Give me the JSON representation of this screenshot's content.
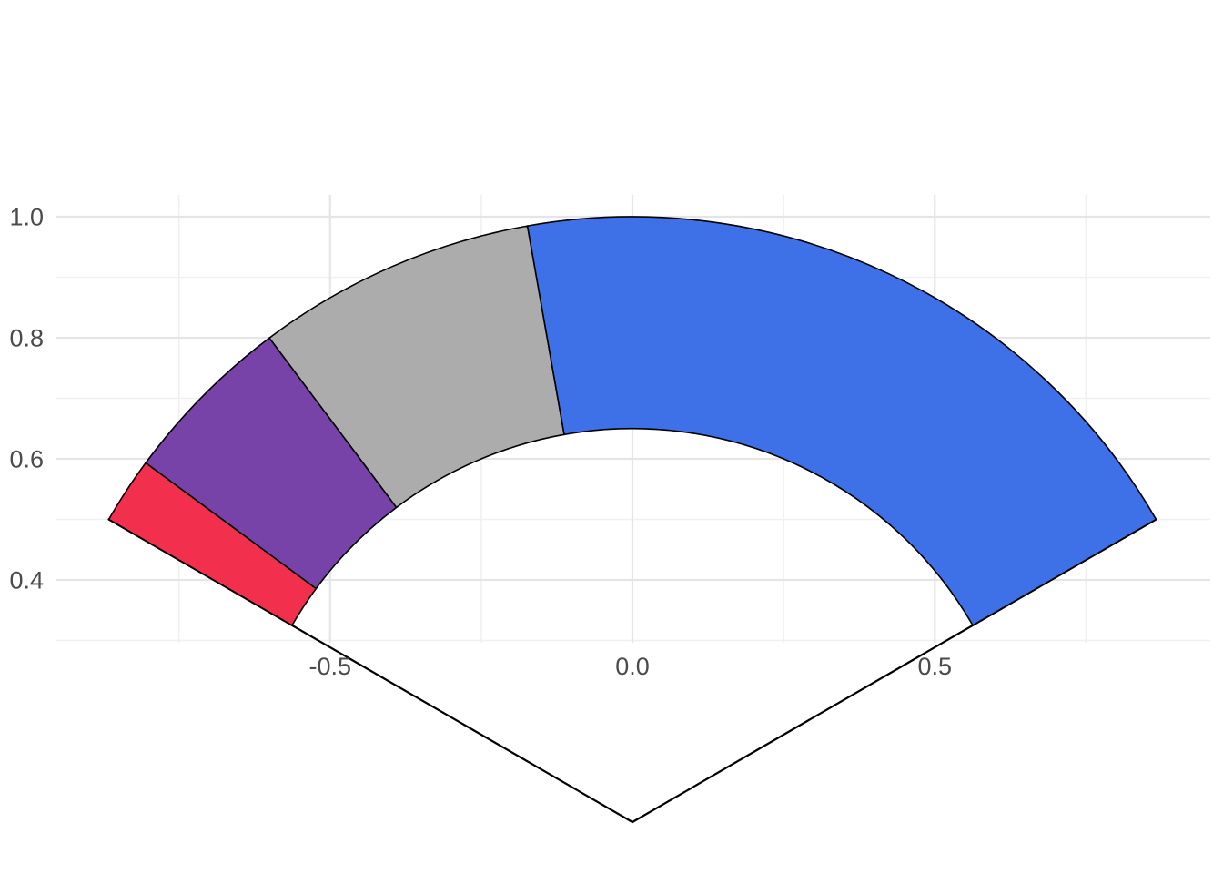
{
  "chart_data": {
    "type": "pie",
    "subtype": "gauge-fan-annular-sectors-on-cartesian-axes",
    "legend": "none",
    "grid_on": true,
    "segments": [
      {
        "name": "red",
        "color": "#F2304E",
        "start_angle_deg": 150.0,
        "end_angle_deg": 143.6,
        "fraction": 0.053
      },
      {
        "name": "purple",
        "color": "#7843A8",
        "start_angle_deg": 143.6,
        "end_angle_deg": 126.9,
        "fraction": 0.139
      },
      {
        "name": "gray",
        "color": "#ACACAC",
        "start_angle_deg": 126.9,
        "end_angle_deg": 100.0,
        "fraction": 0.224
      },
      {
        "name": "blue",
        "color": "#3E71E8",
        "start_angle_deg": 100.0,
        "end_angle_deg": 30.0,
        "fraction": 0.583
      }
    ],
    "geometry": {
      "center": {
        "x": 0,
        "y": 0
      },
      "inner_radius": 0.65,
      "outer_radius": 1.0,
      "arc_start_deg": 150,
      "arc_end_deg": 30,
      "radial_edge_lines_deg": [
        150,
        30
      ]
    },
    "axes": {
      "x": {
        "ticks": [
          {
            "value": -0.5,
            "label": "-0.5"
          },
          {
            "value": 0.0,
            "label": "0.0"
          },
          {
            "value": 0.5,
            "label": "0.5"
          }
        ],
        "minor_gridlines": [
          -0.75,
          -0.25,
          0.25,
          0.75
        ],
        "range": [
          -0.953,
          0.956
        ]
      },
      "y": {
        "ticks": [
          {
            "value": 1.0,
            "label": "1.0"
          },
          {
            "value": 0.8,
            "label": "0.8"
          },
          {
            "value": 0.6,
            "label": "0.6"
          },
          {
            "value": 0.4,
            "label": "0.4"
          }
        ],
        "minor_gridlines": [
          0.3,
          0.5,
          0.7,
          0.9
        ],
        "range": [
          0.296,
          1.037
        ]
      }
    },
    "style": {
      "background": "#FFFFFF",
      "wedge_outline_color": "#000000",
      "radial_line_color": "#000000",
      "grid_major_color": "#E5E5E5",
      "grid_minor_color": "#F0F0F0",
      "axis_text_color": "#4B4B4B"
    }
  }
}
